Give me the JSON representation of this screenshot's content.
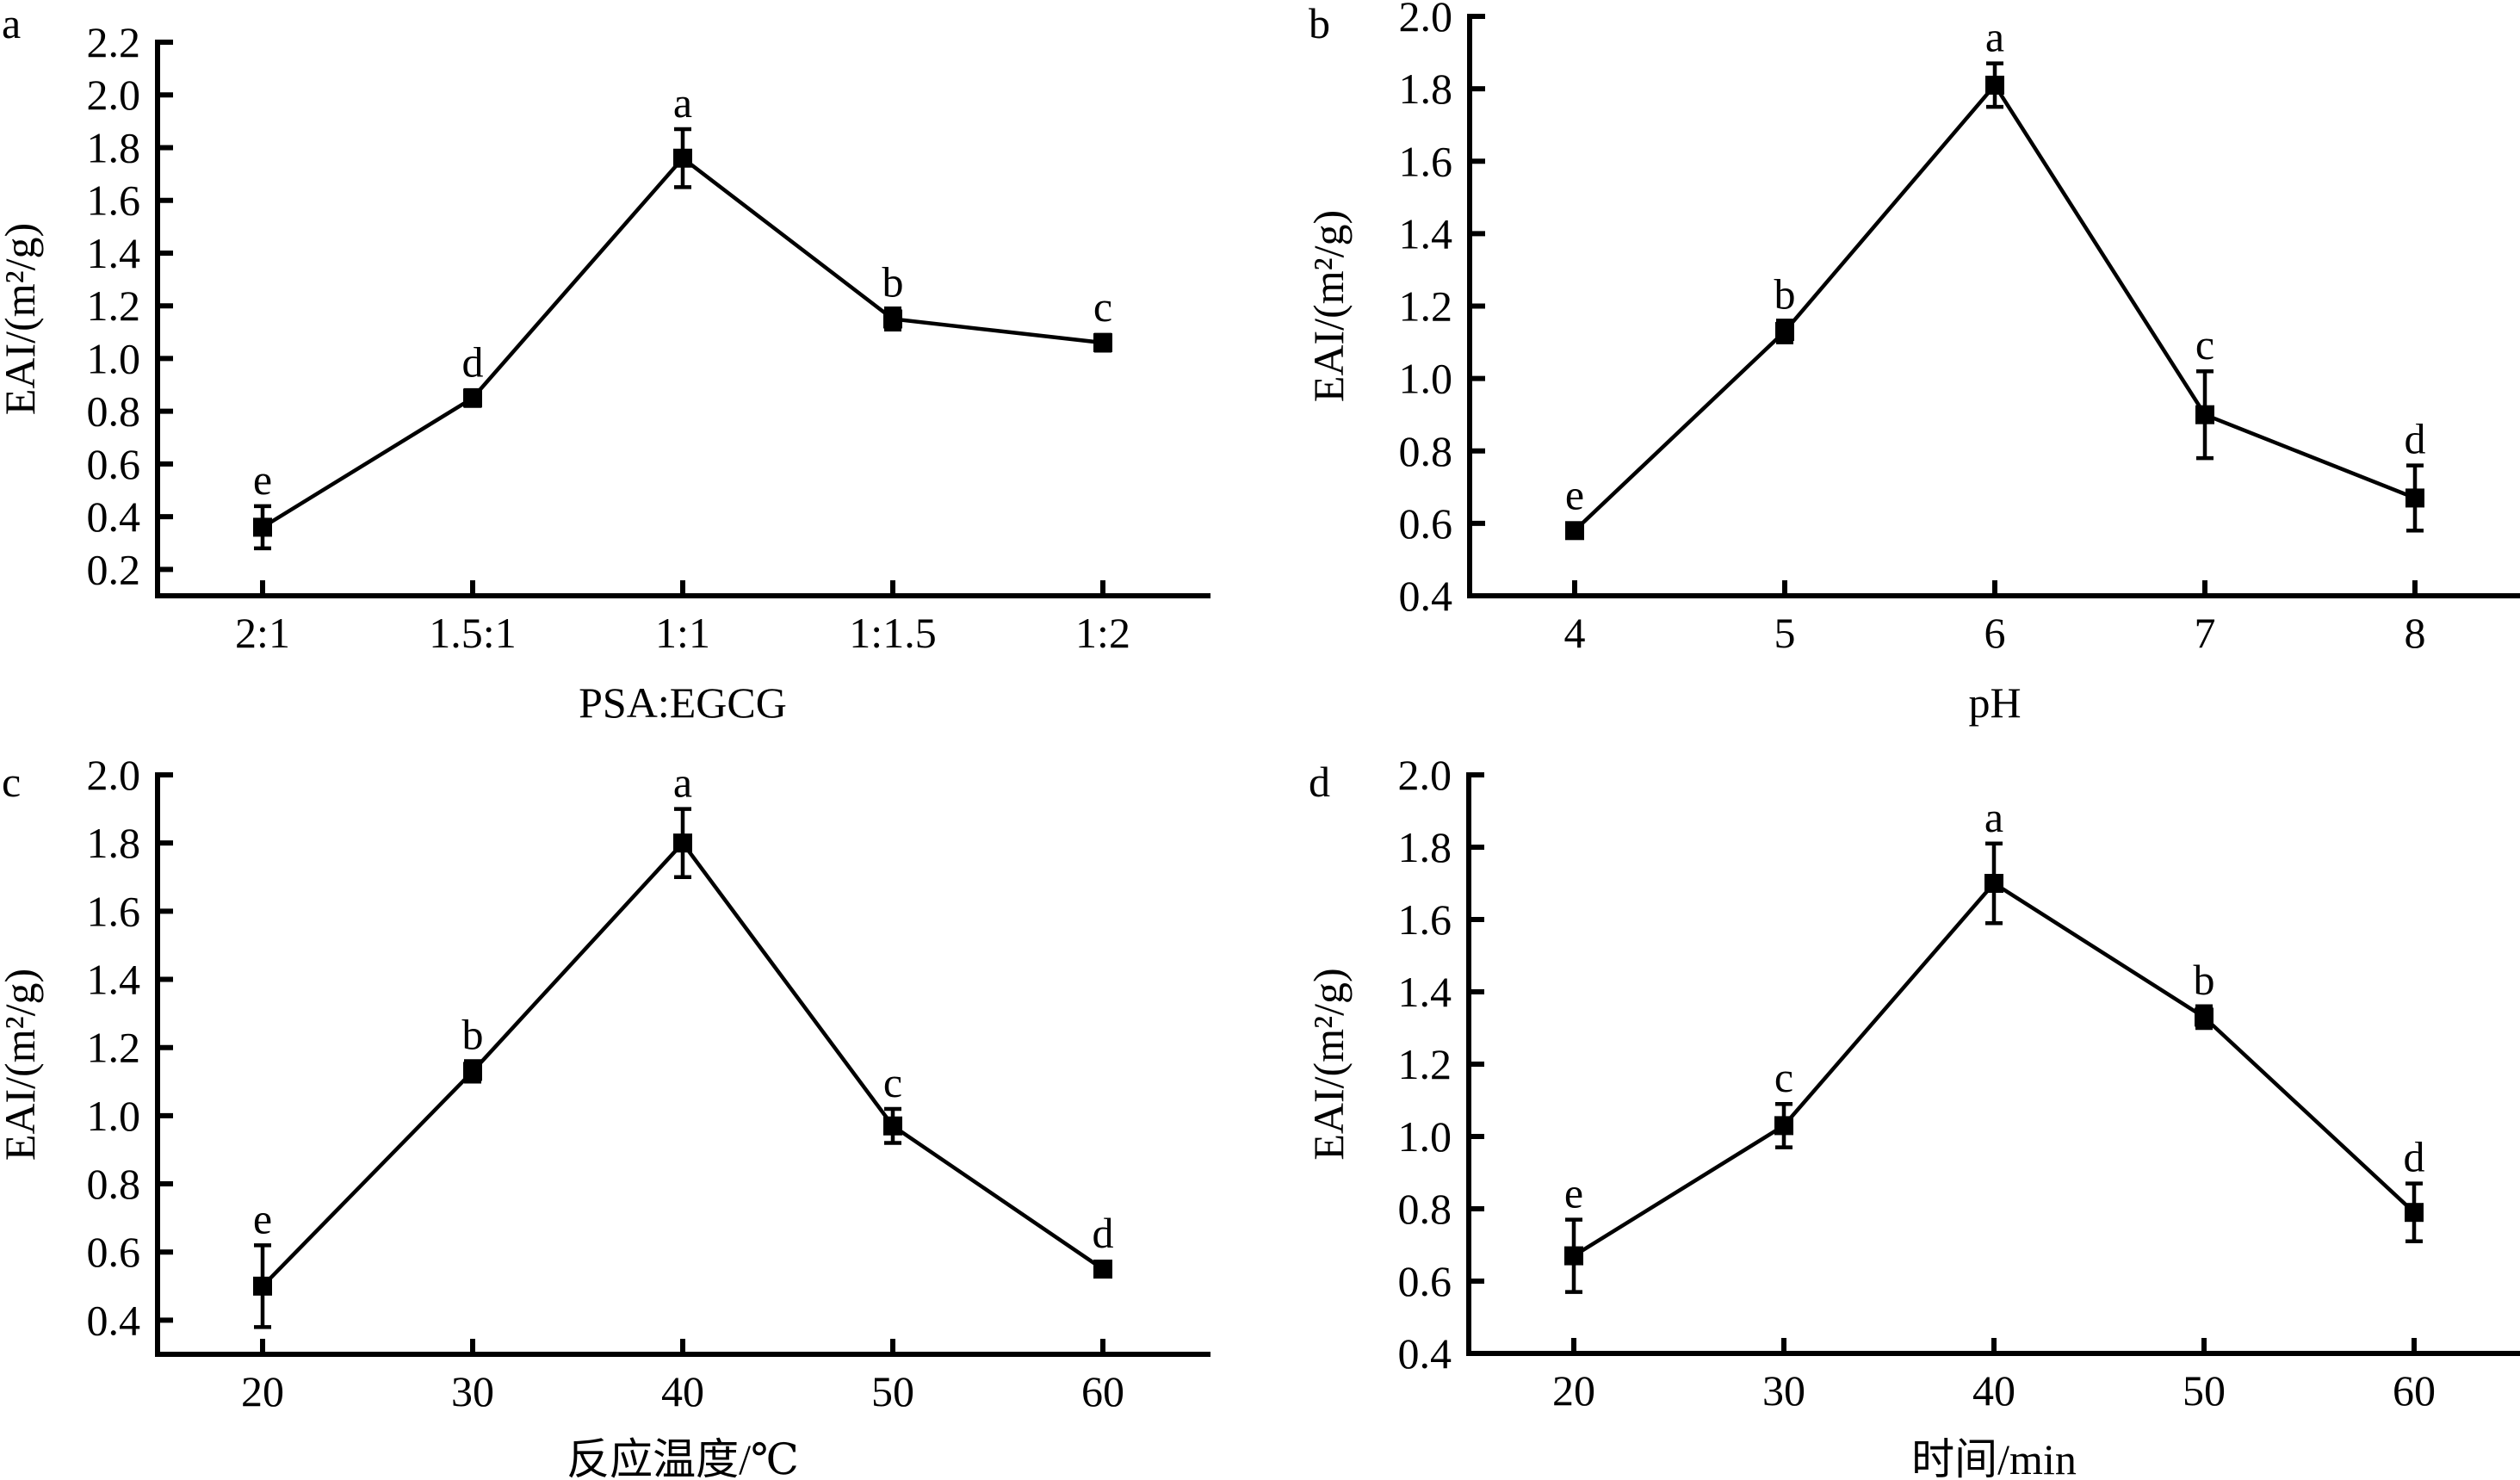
{
  "chart_data": [
    {
      "panel": "a",
      "type": "line",
      "xlabel": "PSA:EGCG",
      "ylabel": "EAI/(m²/g)",
      "categories": [
        "2:1",
        "1.5:1",
        "1:1",
        "1:1.5",
        "1:2"
      ],
      "values": [
        0.36,
        0.85,
        1.76,
        1.15,
        1.06
      ],
      "errors": [
        0.08,
        0.03,
        0.11,
        0.04,
        0.03
      ],
      "significance": [
        "e",
        "d",
        "a",
        "b",
        "c"
      ],
      "yticks": [
        "0.2",
        "0.4",
        "0.6",
        "0.8",
        "1.0",
        "1.2",
        "1.4",
        "1.6",
        "1.8",
        "2.0",
        "2.2"
      ],
      "ylim": [
        0.1,
        2.2
      ],
      "grid": false
    },
    {
      "panel": "b",
      "type": "line",
      "xlabel": "pH",
      "ylabel": "EAI/(m²/g)",
      "categories": [
        "4",
        "5",
        "6",
        "7",
        "8"
      ],
      "values": [
        0.58,
        1.13,
        1.81,
        0.9,
        0.67
      ],
      "errors": [
        0.01,
        0.03,
        0.06,
        0.12,
        0.09
      ],
      "significance": [
        "e",
        "b",
        "a",
        "c",
        "d"
      ],
      "yticks": [
        "0.4",
        "0.6",
        "0.8",
        "1.0",
        "1.2",
        "1.4",
        "1.6",
        "1.8",
        "2.0"
      ],
      "ylim": [
        0.4,
        2.0
      ],
      "grid": false
    },
    {
      "panel": "c",
      "type": "line",
      "xlabel": "反应温度/℃",
      "ylabel": "EAI/(m²/g)",
      "categories": [
        "20",
        "30",
        "40",
        "50",
        "60"
      ],
      "values": [
        0.5,
        1.13,
        1.8,
        0.97,
        0.55
      ],
      "errors": [
        0.12,
        0.03,
        0.1,
        0.05,
        0.01
      ],
      "significance": [
        "e",
        "b",
        "a",
        "c",
        "d"
      ],
      "yticks": [
        "0.4",
        "0.6",
        "0.8",
        "1.0",
        "1.2",
        "1.4",
        "1.6",
        "1.8",
        "2.0"
      ],
      "ylim": [
        0.3,
        2.0
      ],
      "grid": false
    },
    {
      "panel": "d",
      "type": "line",
      "xlabel": "时间/min",
      "ylabel": "EAI/(m²/g)",
      "categories": [
        "20",
        "30",
        "40",
        "50",
        "60"
      ],
      "values": [
        0.67,
        1.03,
        1.7,
        1.33,
        0.79
      ],
      "errors": [
        0.1,
        0.06,
        0.11,
        0.03,
        0.08
      ],
      "significance": [
        "e",
        "c",
        "a",
        "b",
        "d"
      ],
      "yticks": [
        "0.4",
        "0.6",
        "0.8",
        "1.0",
        "1.2",
        "1.4",
        "1.6",
        "1.8",
        "2.0"
      ],
      "ylim": [
        0.4,
        2.0
      ],
      "grid": false
    }
  ]
}
